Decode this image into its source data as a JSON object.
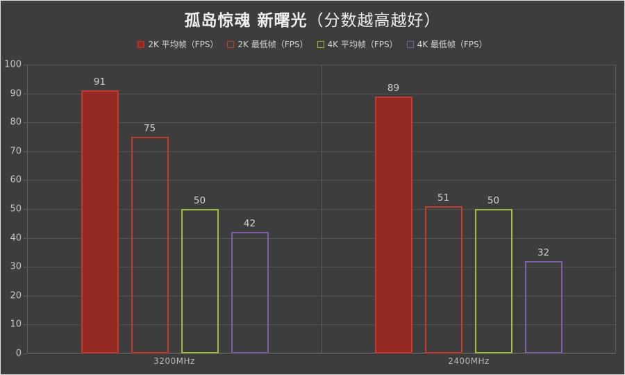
{
  "title": {
    "main": "孤岛惊魂 新曙光",
    "sub": "（分数越高越好）"
  },
  "chart_data": {
    "type": "bar",
    "title": "孤岛惊魂 新曙光（分数越高越好）",
    "categories": [
      "3200MHz",
      "2400MHz"
    ],
    "series": [
      {
        "name": "2K 平均帧（FPS）",
        "values": [
          91,
          89
        ],
        "filled": true,
        "fill": "#952a24",
        "border": "#c43b2e"
      },
      {
        "name": "2K 最低帧（FPS）",
        "values": [
          75,
          51
        ],
        "filled": false,
        "fill": "transparent",
        "border": "#c43b2e"
      },
      {
        "name": "4K 平均帧（FPS）",
        "values": [
          50,
          50
        ],
        "filled": false,
        "fill": "transparent",
        "border": "#9fbf3f"
      },
      {
        "name": "4K 最低帧（FPS）",
        "values": [
          42,
          32
        ],
        "filled": false,
        "fill": "transparent",
        "border": "#7e5fa5"
      }
    ],
    "xlabel": "",
    "ylabel": "",
    "ylim": [
      0,
      100
    ],
    "ytick_step": 10,
    "grid": true,
    "legend_position": "top",
    "background": "#3d3d3d"
  }
}
